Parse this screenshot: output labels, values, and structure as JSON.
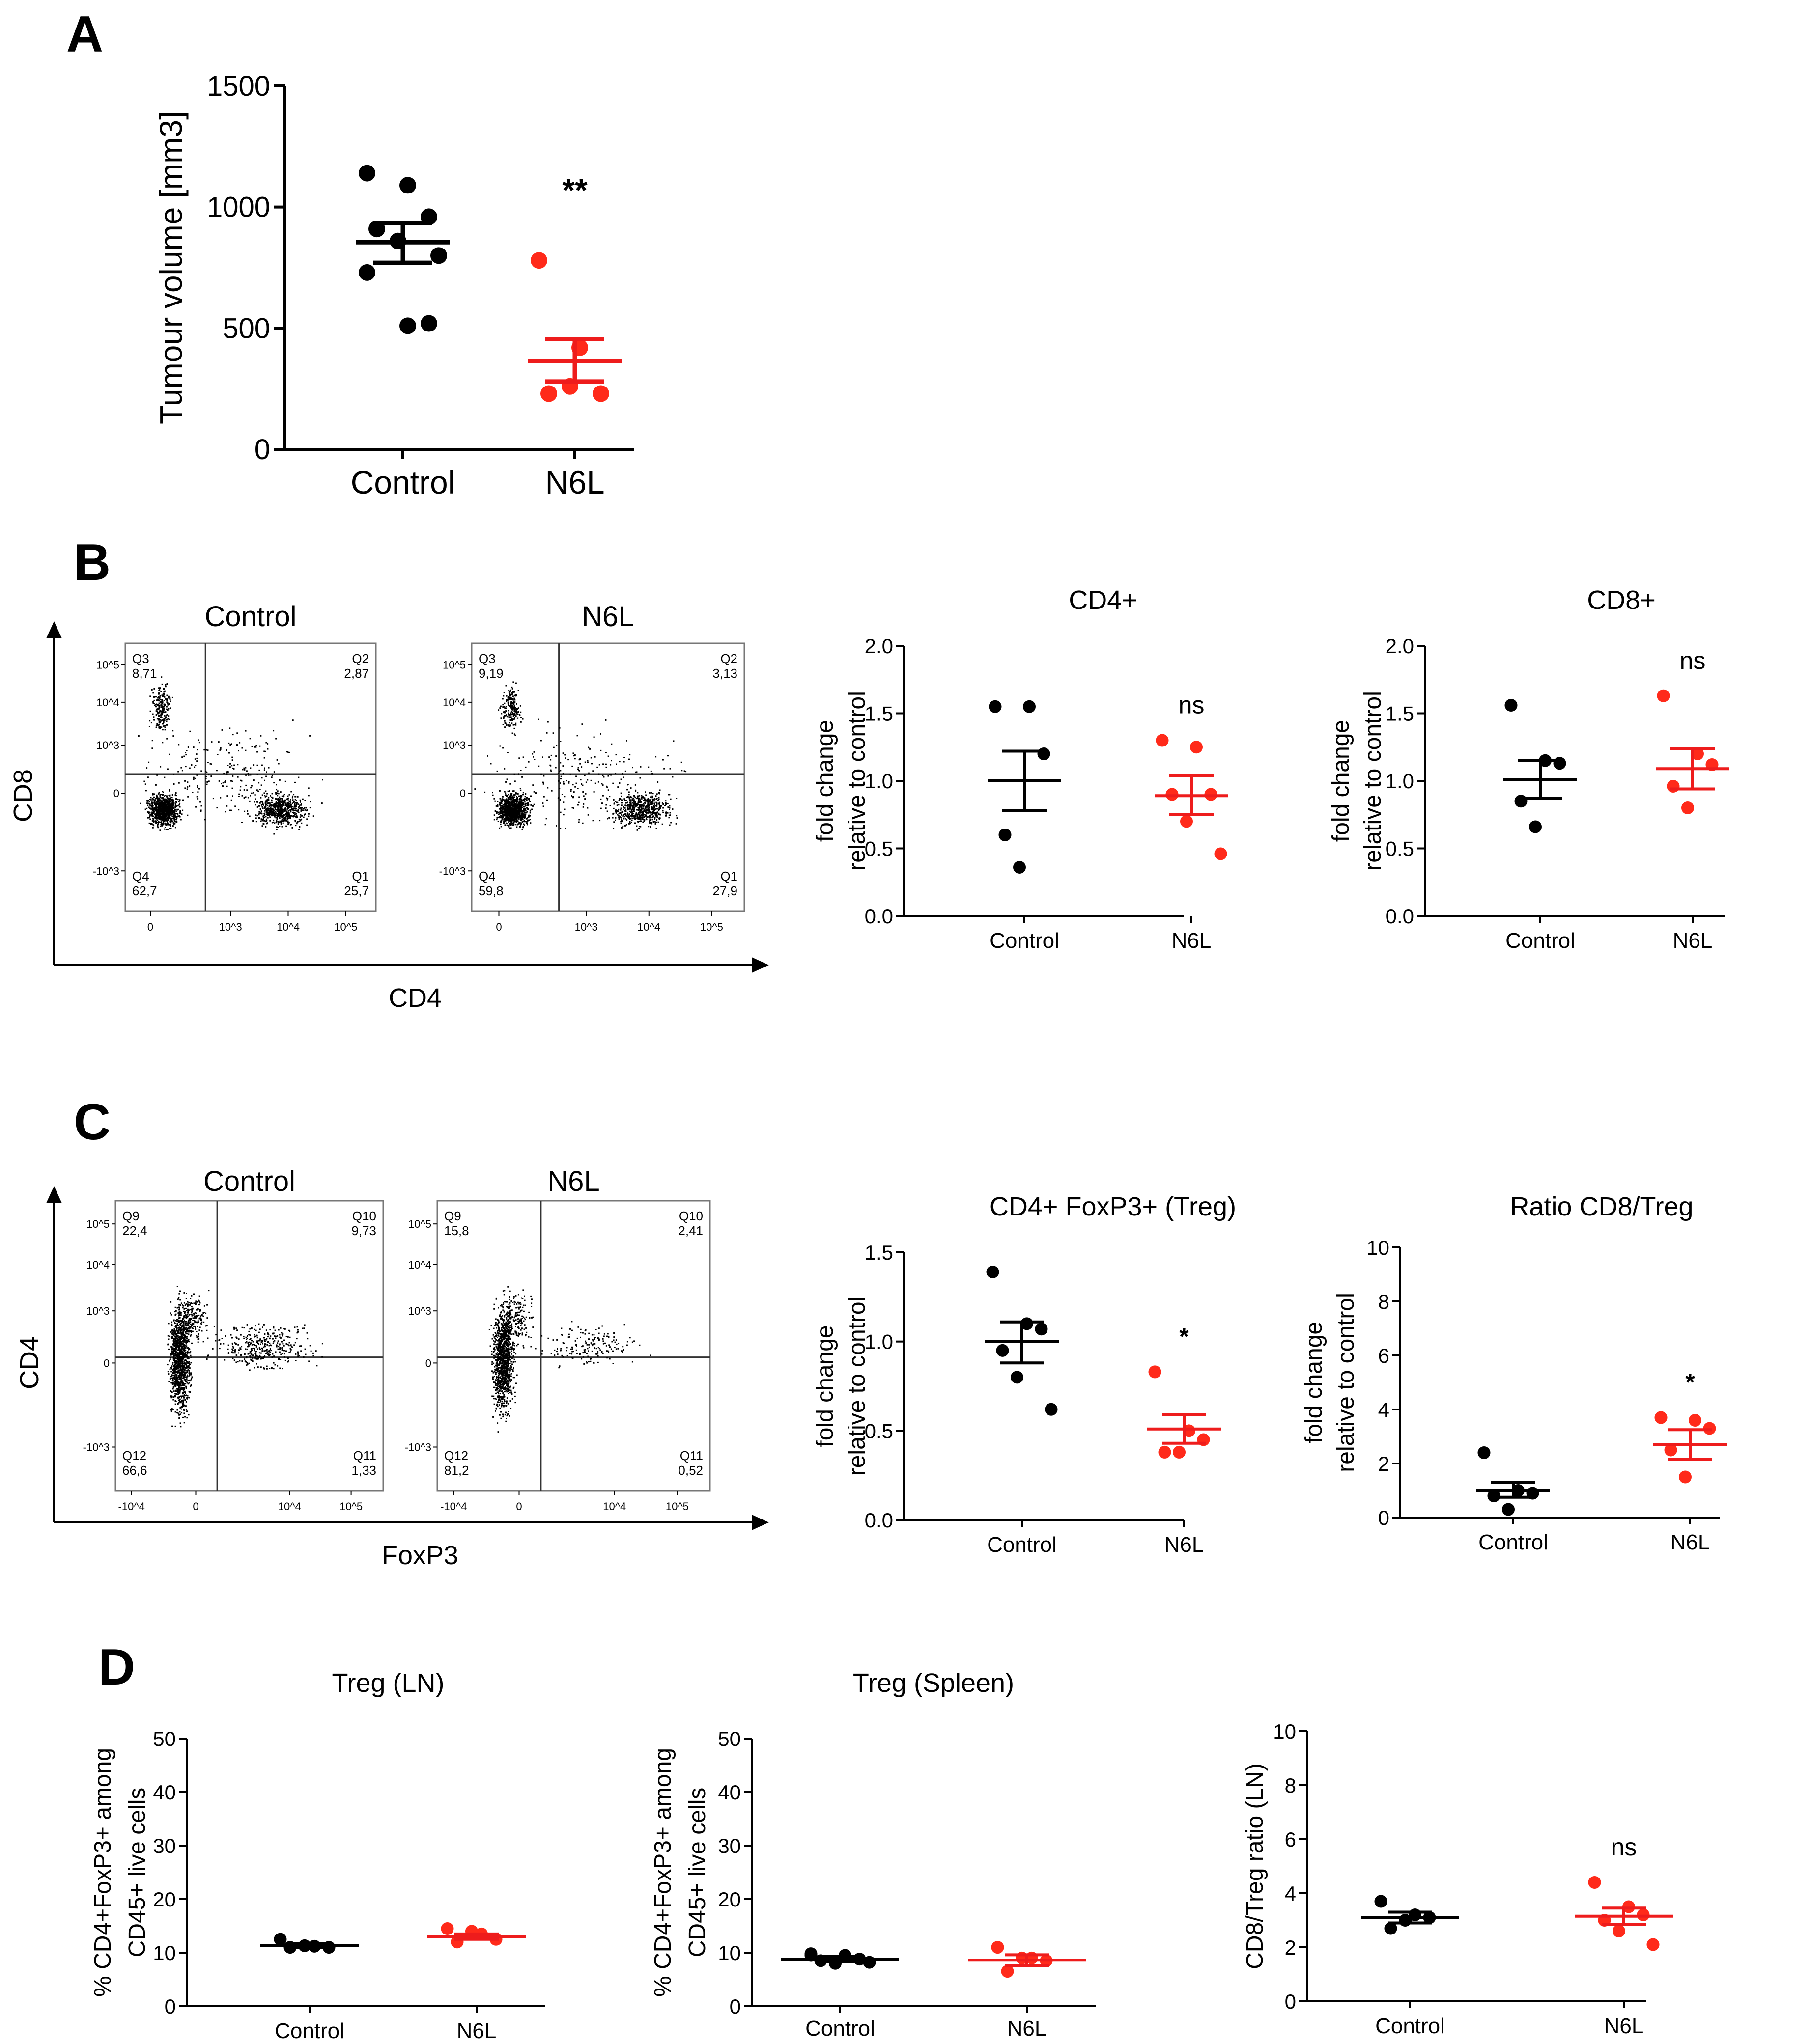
{
  "colors": {
    "control": "#000000",
    "n6l": "#ff2a1a",
    "n6l_bar": "#ee1c1c"
  },
  "panel_labels": {
    "a": "A",
    "b": "B",
    "c": "C",
    "d": "D"
  },
  "chart_data": [
    {
      "id": "A",
      "type": "scatter",
      "title": "",
      "ylabel": "Tumour volume [mm3]",
      "ylim": [
        0,
        1500
      ],
      "yticks": [
        "0",
        "500",
        "1000",
        "1500"
      ],
      "categories": [
        "Control",
        "N6L"
      ],
      "series": [
        {
          "name": "Control",
          "values": [
            1140,
            1090,
            960,
            910,
            860,
            800,
            730,
            510,
            520
          ],
          "mean": 855,
          "sem_low": 770,
          "sem_high": 935
        },
        {
          "name": "N6L",
          "values": [
            780,
            420,
            230,
            230,
            260
          ],
          "mean": 365,
          "sem_low": 280,
          "sem_high": 455
        }
      ],
      "annotations": [
        "",
        "**"
      ]
    },
    {
      "id": "B-CD4",
      "type": "scatter",
      "title": "CD4+",
      "ylabel": [
        "fold change",
        "relative to control"
      ],
      "ylim": [
        0,
        2.0
      ],
      "yticks": [
        "0.0",
        "0.5",
        "1.0",
        "1.5",
        "2.0"
      ],
      "categories": [
        "Control",
        "N6L"
      ],
      "series": [
        {
          "name": "Control",
          "values": [
            1.55,
            1.55,
            1.2,
            0.6,
            0.36
          ],
          "mean": 1.0,
          "sem_low": 0.78,
          "sem_high": 1.22
        },
        {
          "name": "N6L",
          "values": [
            1.3,
            1.25,
            0.9,
            0.9,
            0.7,
            0.46
          ],
          "mean": 0.89,
          "sem_low": 0.75,
          "sem_high": 1.04
        }
      ],
      "annotations": [
        "",
        "ns"
      ]
    },
    {
      "id": "B-CD8",
      "type": "scatter",
      "title": "CD8+",
      "ylabel": [
        "fold change",
        "relative to control"
      ],
      "ylim": [
        0,
        2.0
      ],
      "yticks": [
        "0.0",
        "0.5",
        "1.0",
        "1.5",
        "2.0"
      ],
      "categories": [
        "Control",
        "N6L"
      ],
      "series": [
        {
          "name": "Control",
          "values": [
            1.56,
            1.15,
            1.13,
            0.85,
            0.66
          ],
          "mean": 1.01,
          "sem_low": 0.87,
          "sem_high": 1.15
        },
        {
          "name": "N6L",
          "values": [
            1.63,
            1.2,
            1.12,
            0.96,
            0.8
          ],
          "mean": 1.09,
          "sem_low": 0.94,
          "sem_high": 1.24
        }
      ],
      "annotations": [
        "",
        "ns"
      ]
    },
    {
      "id": "C-Treg",
      "type": "scatter",
      "title": "CD4+ FoxP3+ (Treg)",
      "ylabel": [
        "fold change",
        "relative to control"
      ],
      "ylim": [
        0,
        1.5
      ],
      "yticks": [
        "0.0",
        "0.5",
        "1.0",
        "1.5"
      ],
      "categories": [
        "Control",
        "N6L"
      ],
      "series": [
        {
          "name": "Control",
          "values": [
            1.39,
            1.1,
            1.07,
            0.95,
            0.8,
            0.62
          ],
          "mean": 1.0,
          "sem_low": 0.88,
          "sem_high": 1.11
        },
        {
          "name": "N6L",
          "values": [
            0.83,
            0.5,
            0.45,
            0.38,
            0.38
          ],
          "mean": 0.51,
          "sem_low": 0.43,
          "sem_high": 0.59
        }
      ],
      "annotations": [
        "",
        "*"
      ]
    },
    {
      "id": "C-Ratio",
      "type": "scatter",
      "title": "Ratio CD8/Treg",
      "ylabel": [
        "fold change",
        "relative to control"
      ],
      "ylim": [
        0,
        10
      ],
      "yticks": [
        "0",
        "2",
        "4",
        "6",
        "8",
        "10"
      ],
      "categories": [
        "Control",
        "N6L"
      ],
      "series": [
        {
          "name": "Control",
          "values": [
            2.4,
            1.0,
            0.9,
            0.8,
            0.3
          ],
          "mean": 1.0,
          "sem_low": 0.75,
          "sem_high": 1.3
        },
        {
          "name": "N6L",
          "values": [
            3.7,
            3.6,
            3.3,
            2.5,
            1.5
          ],
          "mean": 2.7,
          "sem_low": 2.15,
          "sem_high": 3.25
        }
      ],
      "annotations": [
        "",
        "*"
      ]
    },
    {
      "id": "D-LN",
      "type": "scatter",
      "title": "Treg (LN)",
      "ylabel": [
        "% CD4+FoxP3+ among",
        "CD45+ live cells"
      ],
      "ylim": [
        0,
        50
      ],
      "yticks": [
        "0",
        "10",
        "20",
        "30",
        "40",
        "50"
      ],
      "categories": [
        "Control",
        "N6L"
      ],
      "series": [
        {
          "name": "Control",
          "values": [
            12.5,
            11.2,
            11.0,
            11.0,
            11.3
          ],
          "mean": 11.3,
          "sem_low": 11.0,
          "sem_high": 11.7
        },
        {
          "name": "N6L",
          "values": [
            14.5,
            13.5,
            12.5,
            12.0,
            14.0
          ],
          "mean": 13.0,
          "sem_low": 12.5,
          "sem_high": 13.5
        }
      ],
      "annotations": [
        "",
        ""
      ]
    },
    {
      "id": "D-Spleen",
      "type": "scatter",
      "title": "Treg (Spleen)",
      "ylabel": [
        "% CD4+FoxP3+ among",
        "CD45+ live cells"
      ],
      "ylim": [
        0,
        50
      ],
      "yticks": [
        "0",
        "10",
        "20",
        "30",
        "40",
        "50"
      ],
      "categories": [
        "Control",
        "N6L"
      ],
      "series": [
        {
          "name": "Control",
          "values": [
            9.8,
            9.5,
            8.8,
            8.5,
            8.0,
            8.2,
            9.5
          ],
          "mean": 8.8,
          "sem_low": 8.3,
          "sem_high": 9.3
        },
        {
          "name": "N6L",
          "values": [
            11.0,
            9.0,
            8.5,
            6.5,
            9.0
          ],
          "mean": 8.6,
          "sem_low": 7.6,
          "sem_high": 9.6
        }
      ],
      "annotations": [
        "",
        ""
      ]
    },
    {
      "id": "D-Ratio",
      "type": "scatter",
      "title": "",
      "ylabel": [
        "CD8/Treg ratio (LN)"
      ],
      "ylim": [
        0,
        10
      ],
      "yticks": [
        "0",
        "2",
        "4",
        "6",
        "8",
        "10"
      ],
      "categories": [
        "Control",
        "N6L"
      ],
      "series": [
        {
          "name": "Control",
          "values": [
            3.7,
            3.2,
            3.1,
            2.7,
            3.0
          ],
          "mean": 3.1,
          "sem_low": 2.9,
          "sem_high": 3.3
        },
        {
          "name": "N6L",
          "values": [
            4.4,
            3.5,
            3.2,
            3.0,
            2.6,
            2.1
          ],
          "mean": 3.15,
          "sem_low": 2.85,
          "sem_high": 3.45
        }
      ],
      "annotations": [
        "",
        "ns"
      ]
    }
  ],
  "flow_panels": {
    "B": {
      "y_axis": "CD8",
      "x_axis": "CD4",
      "plots": [
        {
          "title": "Control",
          "q_tl": [
            "Q3",
            "8,71"
          ],
          "q_tr": [
            "Q2",
            "2,87"
          ],
          "q_bl": [
            "Q4",
            "62,7"
          ],
          "q_br": [
            "Q1",
            "25,7"
          ]
        },
        {
          "title": "N6L",
          "q_tl": [
            "Q3",
            "9,19"
          ],
          "q_tr": [
            "Q2",
            "3,13"
          ],
          "q_bl": [
            "Q4",
            "59,8"
          ],
          "q_br": [
            "Q1",
            "27,9"
          ]
        }
      ],
      "y_ticks": [
        "10^5",
        "10^4",
        "10^3",
        "0",
        "-10^3"
      ],
      "x_ticks": [
        "0",
        "10^3",
        "10^4",
        "10^5"
      ]
    },
    "C": {
      "y_axis": "CD4",
      "x_axis": "FoxP3",
      "plots": [
        {
          "title": "Control",
          "q_tl": [
            "Q9",
            "22,4"
          ],
          "q_tr": [
            "Q10",
            "9,73"
          ],
          "q_bl": [
            "Q12",
            "66,6"
          ],
          "q_br": [
            "Q11",
            "1,33"
          ]
        },
        {
          "title": "N6L",
          "q_tl": [
            "Q9",
            "15,8"
          ],
          "q_tr": [
            "Q10",
            "2,41"
          ],
          "q_bl": [
            "Q12",
            "81,2"
          ],
          "q_br": [
            "Q11",
            "0,52"
          ]
        }
      ],
      "y_ticks": [
        "10^5",
        "10^4",
        "10^3",
        "0",
        "-10^3"
      ],
      "x_ticks": [
        "-10^4",
        "0",
        "10^4",
        "10^5"
      ]
    }
  }
}
